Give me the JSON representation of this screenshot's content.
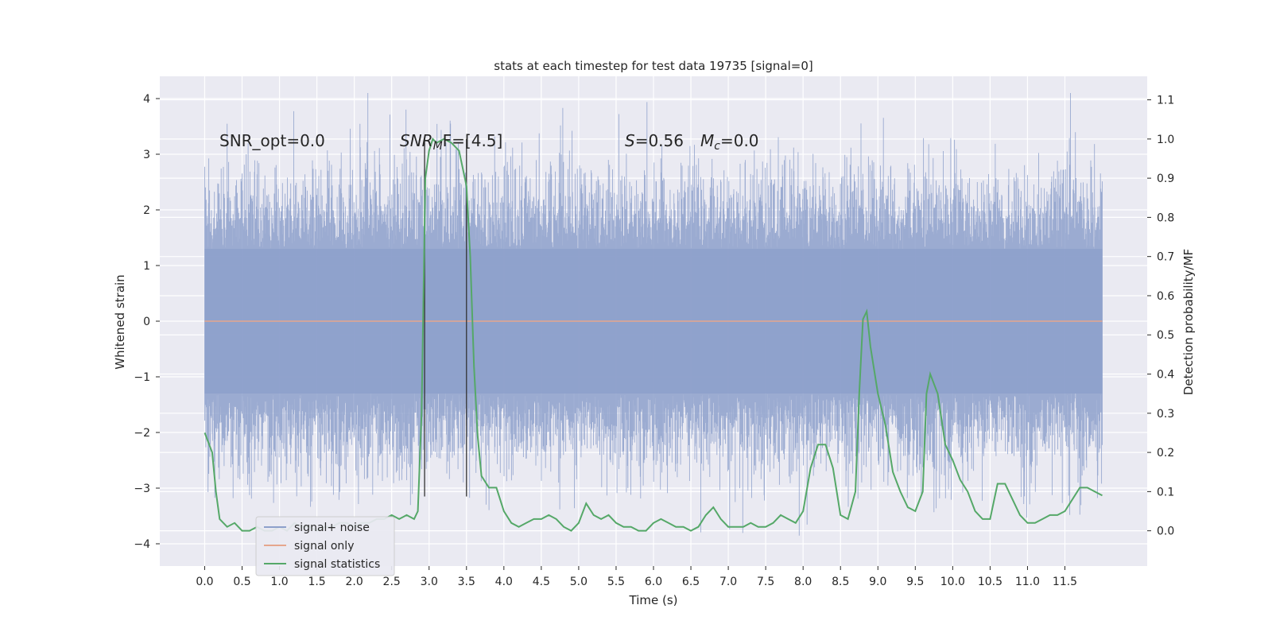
{
  "chart_data": {
    "type": "line",
    "title": "stats at each timestep for test data 19735 [signal=0]",
    "xlabel": "Time (s)",
    "ylabel": "Whitened strain",
    "y2label": "Detection probability/MF",
    "xlim": [
      -0.6,
      12.6
    ],
    "ylim": [
      -4.4,
      4.4
    ],
    "y2lim": [
      -0.09,
      1.16
    ],
    "x_ticks": [
      "0.0",
      "0.5",
      "1.0",
      "1.5",
      "2.0",
      "2.5",
      "3.0",
      "3.5",
      "4.0",
      "4.5",
      "5.0",
      "5.5",
      "6.0",
      "6.5",
      "7.0",
      "7.5",
      "8.0",
      "8.5",
      "9.0",
      "9.5",
      "10.0",
      "10.5",
      "11.0",
      "11.5"
    ],
    "y_ticks": [
      "4",
      "3",
      "2",
      "1",
      "0",
      "−1",
      "−2",
      "−3",
      "−4"
    ],
    "y2_ticks": [
      "1.1",
      "1.0",
      "0.9",
      "0.8",
      "0.7",
      "0.6",
      "0.5",
      "0.4",
      "0.3",
      "0.2",
      "0.1",
      "0.0"
    ],
    "grid": true,
    "legend_position": "lower-left",
    "annotations": {
      "snr_opt": "SNR_opt=0.0",
      "snr_mf_prefix": "SNR",
      "snr_mf_sub": "M",
      "snr_mf_suffix": "F=[4.5]",
      "s_label": "S",
      "s_value": "=0.56",
      "mc_label": "M",
      "mc_sub": "c",
      "mc_value": "=0.0"
    },
    "vertical_markers_x": [
      2.94,
      3.5
    ],
    "series": [
      {
        "name": "signal+ noise",
        "color": "#8da0cb",
        "axis": "left",
        "x_range": [
          0.0,
          12.0
        ],
        "typical_band": [
          -1.3,
          1.3
        ],
        "peaks_range": [
          -4.0,
          4.1
        ]
      },
      {
        "name": "signal only",
        "color": "#e5a68d",
        "axis": "left",
        "x": [
          0.0,
          12.0
        ],
        "values": [
          0.0,
          0.0
        ]
      },
      {
        "name": "signal statistics",
        "color": "#55a868",
        "axis": "right",
        "x": [
          0.0,
          0.1,
          0.15,
          0.2,
          0.3,
          0.4,
          0.5,
          0.6,
          0.7,
          0.8,
          0.9,
          1.0,
          1.1,
          1.2,
          1.3,
          1.4,
          1.5,
          1.6,
          1.7,
          1.8,
          1.9,
          2.0,
          2.1,
          2.2,
          2.3,
          2.4,
          2.5,
          2.6,
          2.7,
          2.8,
          2.85,
          2.9,
          2.95,
          3.0,
          3.05,
          3.1,
          3.2,
          3.3,
          3.4,
          3.5,
          3.55,
          3.6,
          3.65,
          3.7,
          3.8,
          3.9,
          4.0,
          4.1,
          4.2,
          4.3,
          4.4,
          4.5,
          4.6,
          4.7,
          4.8,
          4.9,
          5.0,
          5.1,
          5.2,
          5.3,
          5.4,
          5.5,
          5.6,
          5.7,
          5.8,
          5.9,
          6.0,
          6.1,
          6.2,
          6.3,
          6.4,
          6.5,
          6.6,
          6.7,
          6.8,
          6.9,
          7.0,
          7.1,
          7.2,
          7.3,
          7.4,
          7.5,
          7.6,
          7.7,
          7.8,
          7.9,
          8.0,
          8.1,
          8.2,
          8.3,
          8.4,
          8.5,
          8.6,
          8.7,
          8.75,
          8.8,
          8.85,
          8.9,
          9.0,
          9.1,
          9.2,
          9.3,
          9.4,
          9.5,
          9.6,
          9.65,
          9.7,
          9.8,
          9.9,
          10.0,
          10.1,
          10.2,
          10.3,
          10.4,
          10.5,
          10.6,
          10.7,
          10.8,
          10.9,
          11.0,
          11.1,
          11.2,
          11.3,
          11.4,
          11.5,
          11.6,
          11.7,
          11.8,
          11.9,
          12.0
        ],
        "values": [
          0.25,
          0.2,
          0.1,
          0.03,
          0.01,
          0.02,
          0.0,
          0.0,
          0.01,
          0.0,
          0.0,
          0.01,
          0.0,
          0.02,
          0.01,
          0.01,
          0.0,
          0.01,
          0.01,
          0.02,
          0.02,
          0.01,
          0.02,
          0.02,
          0.03,
          0.03,
          0.04,
          0.03,
          0.04,
          0.03,
          0.05,
          0.3,
          0.9,
          0.97,
          1.0,
          0.99,
          1.0,
          0.99,
          0.97,
          0.88,
          0.7,
          0.42,
          0.24,
          0.14,
          0.11,
          0.11,
          0.05,
          0.02,
          0.01,
          0.02,
          0.03,
          0.03,
          0.04,
          0.03,
          0.01,
          0.0,
          0.02,
          0.07,
          0.04,
          0.03,
          0.04,
          0.02,
          0.01,
          0.01,
          0.0,
          0.0,
          0.02,
          0.03,
          0.02,
          0.01,
          0.01,
          0.0,
          0.01,
          0.04,
          0.06,
          0.03,
          0.01,
          0.01,
          0.01,
          0.02,
          0.01,
          0.01,
          0.02,
          0.04,
          0.03,
          0.02,
          0.05,
          0.16,
          0.22,
          0.22,
          0.16,
          0.04,
          0.03,
          0.1,
          0.35,
          0.54,
          0.56,
          0.47,
          0.35,
          0.27,
          0.15,
          0.1,
          0.06,
          0.05,
          0.1,
          0.35,
          0.4,
          0.35,
          0.22,
          0.18,
          0.13,
          0.1,
          0.05,
          0.03,
          0.03,
          0.12,
          0.12,
          0.08,
          0.04,
          0.02,
          0.02,
          0.03,
          0.04,
          0.04,
          0.05,
          0.08,
          0.11,
          0.11,
          0.1,
          0.09
        ]
      }
    ]
  }
}
